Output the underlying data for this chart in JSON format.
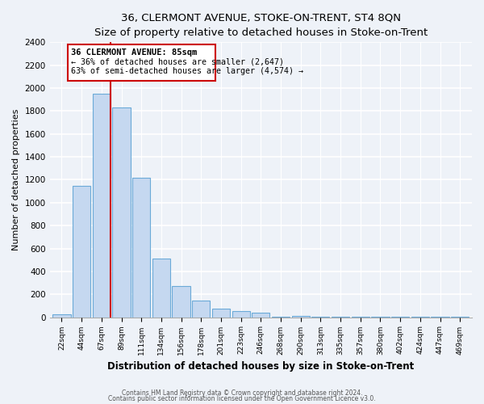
{
  "title": "36, CLERMONT AVENUE, STOKE-ON-TRENT, ST4 8QN",
  "subtitle": "Size of property relative to detached houses in Stoke-on-Trent",
  "xlabel": "Distribution of detached houses by size in Stoke-on-Trent",
  "ylabel": "Number of detached properties",
  "bar_labels": [
    "22sqm",
    "44sqm",
    "67sqm",
    "89sqm",
    "111sqm",
    "134sqm",
    "156sqm",
    "178sqm",
    "201sqm",
    "223sqm",
    "246sqm",
    "268sqm",
    "290sqm",
    "313sqm",
    "335sqm",
    "357sqm",
    "380sqm",
    "402sqm",
    "424sqm",
    "447sqm",
    "469sqm"
  ],
  "bar_values": [
    25,
    1150,
    1950,
    1830,
    1220,
    510,
    270,
    145,
    75,
    50,
    40,
    5,
    10,
    3,
    2,
    2,
    2,
    2,
    2,
    2,
    2
  ],
  "bar_color": "#c5d8f0",
  "bar_edge_color": "#6baad8",
  "annotation_text_line1": "36 CLERMONT AVENUE: 85sqm",
  "annotation_text_line2": "← 36% of detached houses are smaller (2,647)",
  "annotation_text_line3": "63% of semi-detached houses are larger (4,574) →",
  "vline_color": "#cc0000",
  "ylim": [
    0,
    2400
  ],
  "yticks": [
    0,
    200,
    400,
    600,
    800,
    1000,
    1200,
    1400,
    1600,
    1800,
    2000,
    2200,
    2400
  ],
  "footer1": "Contains HM Land Registry data © Crown copyright and database right 2024.",
  "footer2": "Contains public sector information licensed under the Open Government Licence v3.0.",
  "bg_color": "#eef2f8",
  "plot_bg_color": "#eef2f8"
}
